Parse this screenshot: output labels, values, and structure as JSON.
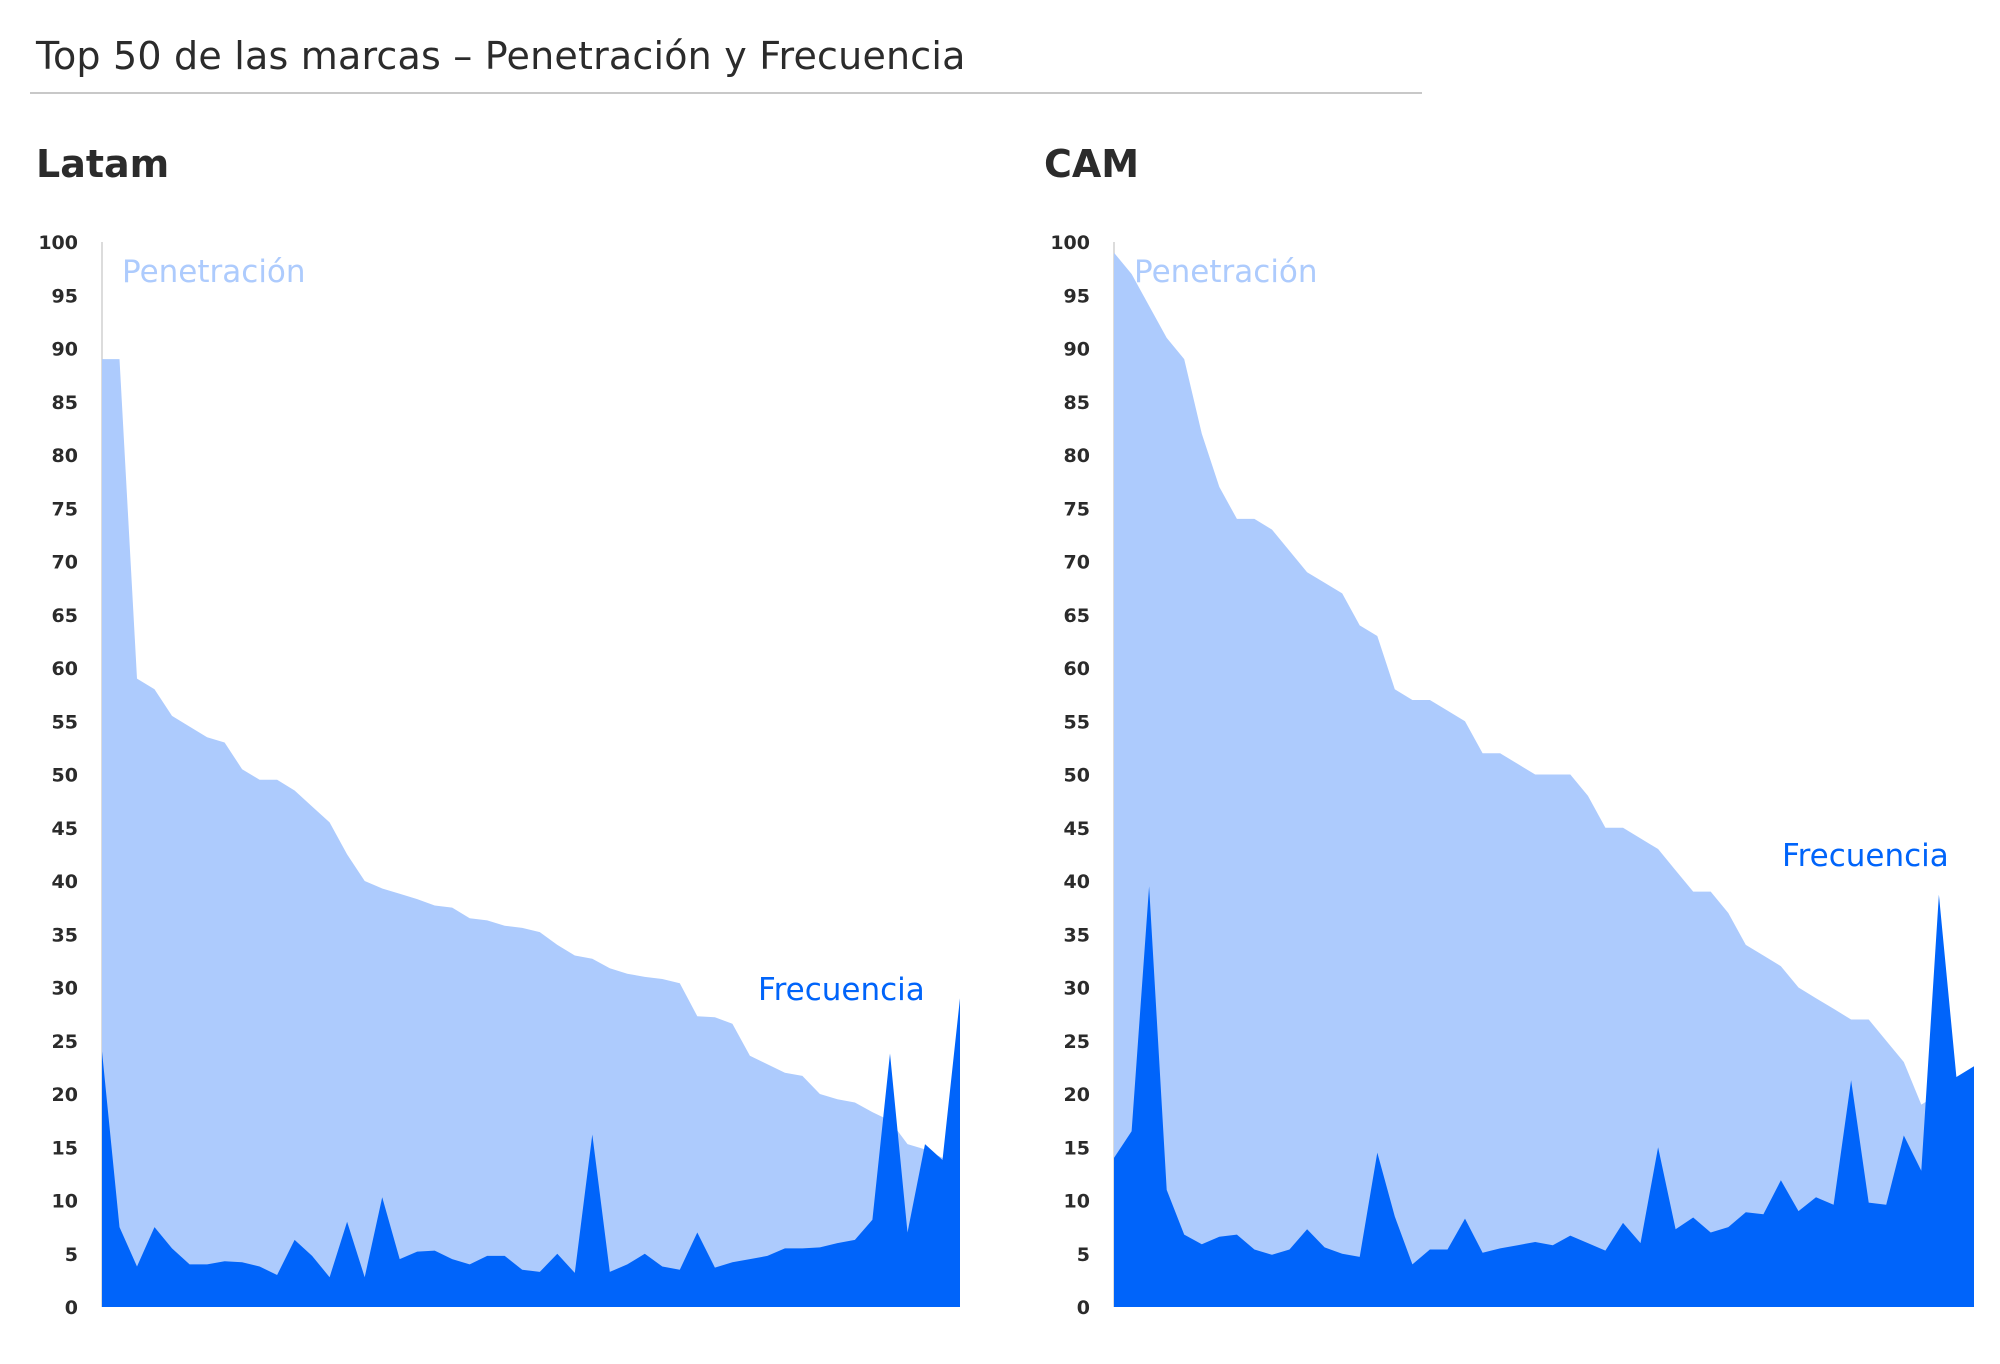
{
  "title": "Top 50 de las marcas – Penetración y Frecuencia",
  "colors": {
    "penetracion": "#adcbfd",
    "frecuencia": "#0064fa",
    "axis": "#d0d0d0",
    "text": "#2b2b2b"
  },
  "chart_data": [
    {
      "type": "area",
      "title": "Latam",
      "ylim": [
        0,
        100
      ],
      "yticks": [
        0,
        5,
        10,
        15,
        20,
        25,
        30,
        35,
        40,
        45,
        50,
        55,
        60,
        65,
        70,
        75,
        80,
        85,
        90,
        95,
        100
      ],
      "grid": false,
      "series": [
        {
          "name": "Penetración",
          "values": [
            89,
            89,
            59,
            58,
            55.5,
            54.5,
            53.5,
            53,
            50.5,
            49.5,
            49.5,
            48.5,
            47,
            45.5,
            42.5,
            40,
            39.3,
            38.8,
            38.3,
            37.7,
            37.5,
            36.5,
            36.3,
            35.8,
            35.6,
            35.2,
            34,
            33,
            32.7,
            31.8,
            31.3,
            31,
            30.8,
            30.4,
            27.3,
            27.2,
            26.6,
            23.6,
            22.8,
            22,
            21.7,
            20,
            19.5,
            19.2,
            18.3,
            17.5,
            15.3,
            14.8,
            14,
            13.8
          ]
        },
        {
          "name": "Frecuencia",
          "values": [
            24,
            7.5,
            3.8,
            7.5,
            5.5,
            4,
            4,
            4.3,
            4.2,
            3.8,
            3,
            6.3,
            4.8,
            2.8,
            8,
            2.8,
            10.3,
            4.5,
            5.2,
            5.3,
            4.5,
            4,
            4.8,
            4.8,
            3.5,
            3.3,
            5,
            3.2,
            16.2,
            3.3,
            4,
            5,
            3.8,
            3.5,
            7,
            3.7,
            4.2,
            4.5,
            4.8,
            5.5,
            5.5,
            5.6,
            6,
            6.3,
            8.2,
            23.8,
            7,
            15.3,
            13.8,
            29
          ]
        }
      ]
    },
    {
      "type": "area",
      "title": "CAM",
      "ylim": [
        0,
        100
      ],
      "yticks": [
        0,
        5,
        10,
        15,
        20,
        25,
        30,
        35,
        40,
        45,
        50,
        55,
        60,
        65,
        70,
        75,
        80,
        85,
        90,
        95,
        100
      ],
      "grid": false,
      "series": [
        {
          "name": "Penetración",
          "values": [
            99,
            97,
            94,
            91,
            89,
            82,
            77,
            74,
            74,
            73,
            71,
            69,
            68,
            67,
            64,
            63,
            58,
            57,
            57,
            56,
            55,
            52,
            52,
            51,
            50,
            50,
            50,
            48,
            45,
            45,
            44,
            43,
            41,
            39,
            39,
            37,
            34,
            33,
            32,
            30,
            29,
            28,
            27,
            27,
            25,
            23,
            19,
            20,
            21,
            22.5
          ]
        },
        {
          "name": "Frecuencia",
          "values": [
            14,
            16.5,
            39.5,
            11,
            6.8,
            5.9,
            6.6,
            6.8,
            5.4,
            4.9,
            5.4,
            7.3,
            5.6,
            5,
            4.7,
            14.5,
            8.5,
            4,
            5.4,
            5.4,
            8.3,
            5.1,
            5.5,
            5.8,
            6.1,
            5.8,
            6.7,
            6,
            5.3,
            7.9,
            6,
            15,
            7.3,
            8.4,
            7,
            7.5,
            8.9,
            8.7,
            11.9,
            9,
            10.3,
            9.6,
            21.3,
            9.8,
            9.6,
            16.1,
            12.8,
            38.7,
            21.6,
            22.6
          ]
        }
      ]
    }
  ]
}
